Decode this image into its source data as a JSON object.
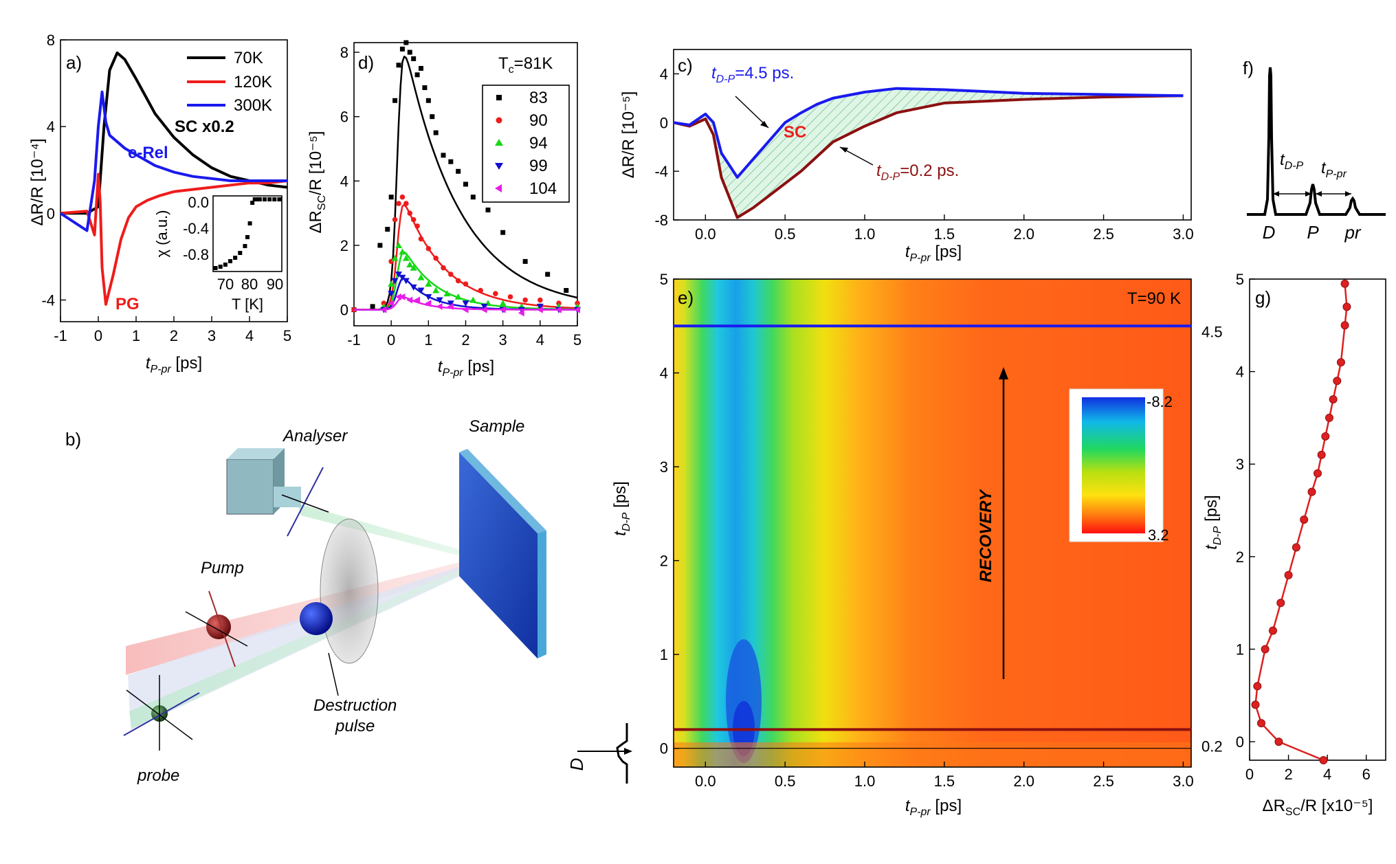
{
  "panels": {
    "a": {
      "label": "a)",
      "ylabel": "ΔR/R [10⁻⁴]",
      "xlabel": "t",
      "xlabel_sub": "P-pr",
      "xlabel_unit": " [ps]",
      "xticks": [
        "-1",
        "0",
        "1",
        "2",
        "3",
        "4",
        "5"
      ],
      "yticks": [
        "-4",
        "0",
        "4",
        "8"
      ],
      "legend": [
        "70K",
        "120K",
        "300K"
      ],
      "annot_sc": "SC x0.2",
      "annot_erel": "e-Rel",
      "annot_pg": "PG",
      "inset": {
        "ylabel": "χ (a.u.)",
        "xlabel": "T [K]",
        "yticks": [
          "0.0",
          "-0.4",
          "-0.8"
        ],
        "xticks": [
          "70",
          "80",
          "90"
        ]
      }
    },
    "d": {
      "label": "d)",
      "tc": "T",
      "tc_sub": "c",
      "tc_val": "=81K",
      "ylabel": "ΔR",
      "ylabel_sub": "SC",
      "ylabel_rest": "/R [10⁻⁵]",
      "xlabel": "t",
      "xlabel_sub": "P-pr",
      "xlabel_unit": " [ps]",
      "xticks": [
        "-1",
        "0",
        "1",
        "2",
        "3",
        "4",
        "5"
      ],
      "yticks": [
        "0",
        "2",
        "4",
        "6",
        "8"
      ],
      "legend": [
        "83",
        "90",
        "94",
        "99",
        "104"
      ]
    },
    "c": {
      "label": "c)",
      "ylabel": "ΔR/R [10⁻⁵]",
      "xlabel": "t",
      "xlabel_sub": "P-pr",
      "xlabel_unit": " [ps]",
      "xticks": [
        "0.0",
        "0.5",
        "1.0",
        "1.5",
        "2.0",
        "2.5",
        "3.0"
      ],
      "yticks": [
        "-8",
        "-4",
        "0",
        "4"
      ],
      "annot_blue": "=4.5 ps.",
      "annot_red": "=0.2 ps.",
      "annot_t": "t",
      "annot_sub": "D-P",
      "annot_sc": "SC"
    },
    "f": {
      "label": "f)",
      "t_dp": "t",
      "t_dp_sub": "D-P",
      "t_ppr": "t",
      "t_ppr_sub": "P-pr",
      "peaks": [
        "D",
        "P",
        "pr"
      ]
    },
    "b": {
      "label": "b)",
      "analyser": "Analyser",
      "sample": "Sample",
      "pump": "Pump",
      "destruction1": "Destruction",
      "destruction2": "pulse",
      "probe": "probe"
    },
    "e": {
      "label": "e)",
      "temp": "T=90 K",
      "ylabel": "t",
      "ylabel_sub": "D-P",
      "ylabel_unit": " [ps]",
      "xlabel": "t",
      "xlabel_sub": "P-pr",
      "xlabel_unit": " [ps]",
      "xticks": [
        "0.0",
        "0.5",
        "1.0",
        "1.5",
        "2.0",
        "2.5",
        "3.0"
      ],
      "yticks": [
        "0",
        "1",
        "2",
        "3",
        "4",
        "5"
      ],
      "line_blue": "4.5",
      "line_red": "0.2",
      "recovery": "RECOVERY",
      "cbar_max": "-8.2",
      "cbar_min": "3.2",
      "d_marker": "D"
    },
    "g": {
      "label": "g)",
      "ylabel": "t",
      "ylabel_sub": "D-P",
      "ylabel_unit": " [ps]",
      "xlabel": "ΔR",
      "xlabel_sub": "SC",
      "xlabel_rest": "/R [x10⁻⁵]",
      "xticks": [
        "0",
        "2",
        "4",
        "6"
      ],
      "yticks": [
        "0",
        "1",
        "2",
        "3",
        "4",
        "5"
      ]
    }
  },
  "colors": {
    "black": "#000000",
    "red": "#ee1c1c",
    "blue": "#1a1aee",
    "green": "#16d816",
    "navy": "#1010d0",
    "magenta": "#e81ce8",
    "maroon": "#8b1010",
    "dotred": "#dd2020"
  },
  "chart_data": [
    {
      "type": "line",
      "panel": "a",
      "xlim": [
        -1,
        5
      ],
      "ylim": [
        -5,
        8
      ],
      "series": [
        {
          "name": "70K",
          "x": [
            -1,
            -0.3,
            0,
            0.15,
            0.3,
            0.5,
            0.7,
            1,
            1.5,
            2,
            2.5,
            3,
            3.5,
            4,
            4.5,
            5
          ],
          "y": [
            0,
            0,
            0.3,
            4,
            6.6,
            7.4,
            7.1,
            6.2,
            4.6,
            3.5,
            2.7,
            2.1,
            1.7,
            1.5,
            1.3,
            1.2
          ]
        },
        {
          "name": "120K",
          "x": [
            -1,
            -0.3,
            -0.1,
            0,
            0.05,
            0.1,
            0.2,
            0.4,
            0.6,
            0.8,
            1,
            1.3,
            1.6,
            2,
            2.5,
            3,
            3.5,
            4,
            4.5,
            5
          ],
          "y": [
            0,
            0.1,
            -1,
            1.8,
            0.5,
            -2.5,
            -4.2,
            -2.8,
            -1.2,
            -0.2,
            0.3,
            0.6,
            0.8,
            1,
            1.1,
            1.2,
            1.3,
            1.4,
            1.4,
            1.5
          ]
        },
        {
          "name": "300K",
          "x": [
            -1,
            -0.3,
            -0.1,
            0,
            0.1,
            0.2,
            0.3,
            0.5,
            0.7,
            1,
            1.5,
            2,
            2.5,
            3,
            3.5,
            4,
            4.5,
            5
          ],
          "y": [
            0,
            -0.8,
            1.5,
            4,
            5.6,
            4.2,
            3.6,
            3.3,
            3,
            2.7,
            2.2,
            1.9,
            1.7,
            1.6,
            1.5,
            1.5,
            1.5,
            1.5
          ]
        }
      ],
      "inset": {
        "type": "scatter",
        "xlim": [
          65,
          93
        ],
        "ylim": [
          -1.05,
          0.05
        ],
        "x": [
          66,
          68,
          70,
          72,
          74,
          76,
          78,
          79,
          80,
          81,
          82,
          83,
          84,
          86,
          88,
          90,
          92
        ],
        "y": [
          -1,
          -0.98,
          -0.95,
          -0.9,
          -0.85,
          -0.78,
          -0.68,
          -0.55,
          -0.35,
          -0.05,
          0,
          0,
          0,
          0,
          0,
          0,
          0
        ]
      }
    },
    {
      "type": "scatter",
      "panel": "d",
      "xlim": [
        -1,
        5
      ],
      "ylim": [
        -0.5,
        8.3
      ],
      "series": [
        {
          "name": "83",
          "amplitude": 8.6,
          "decay": 1.5,
          "x": [
            -1,
            -0.5,
            -0.3,
            -0.1,
            0,
            0.1,
            0.2,
            0.3,
            0.4,
            0.5,
            0.6,
            0.7,
            0.8,
            0.9,
            1,
            1.1,
            1.2,
            1.4,
            1.6,
            1.8,
            2,
            2.2,
            2.6,
            3,
            3.6,
            4.2,
            4.7
          ],
          "y": [
            0,
            0.1,
            2,
            2.5,
            3.5,
            6.5,
            7.6,
            8.1,
            8.3,
            8,
            7.8,
            7.3,
            7.5,
            6.9,
            6.5,
            6,
            5.5,
            4.8,
            4.6,
            4.3,
            3.9,
            3.5,
            3.1,
            2.4,
            1.5,
            1.1,
            0.6
          ]
        },
        {
          "name": "90",
          "amplitude": 3.6,
          "decay": 1.1,
          "x": [
            -1,
            -0.2,
            0,
            0.1,
            0.2,
            0.3,
            0.4,
            0.5,
            0.6,
            0.7,
            0.8,
            1,
            1.2,
            1.4,
            1.6,
            1.8,
            2,
            2.4,
            2.8,
            3.2,
            3.6,
            4,
            4.5,
            5
          ],
          "y": [
            0,
            0.2,
            1.5,
            2.8,
            3.3,
            3.5,
            3.3,
            3,
            2.8,
            2.6,
            2.2,
            1.9,
            1.6,
            1.3,
            1.1,
            0.9,
            0.8,
            0.6,
            0.5,
            0.4,
            0.3,
            0.3,
            0.2,
            0.2
          ]
        },
        {
          "name": "94",
          "amplitude": 2.0,
          "decay": 0.9,
          "x": [
            -0.2,
            0,
            0.1,
            0.2,
            0.3,
            0.4,
            0.5,
            0.6,
            0.8,
            1,
            1.2,
            1.5,
            1.8,
            2.2,
            2.6,
            3,
            3.5,
            4,
            4.5,
            5
          ],
          "y": [
            0.1,
            0.8,
            1.6,
            2,
            1.8,
            1.6,
            1.4,
            1.3,
            1,
            0.8,
            0.6,
            0.5,
            0.4,
            0.3,
            0.2,
            0.2,
            0.1,
            0.1,
            0.1,
            0.1
          ]
        },
        {
          "name": "99",
          "amplitude": 1.1,
          "decay": 0.7,
          "x": [
            -0.2,
            0,
            0.1,
            0.2,
            0.3,
            0.4,
            0.6,
            0.8,
            1,
            1.3,
            1.6,
            2,
            2.5,
            3,
            3.5,
            4,
            4.5,
            5
          ],
          "y": [
            0,
            0.5,
            0.9,
            1.1,
            1,
            0.9,
            0.7,
            0.6,
            0.4,
            0.3,
            0.2,
            0.2,
            0.1,
            0,
            0,
            0.1,
            0,
            0
          ]
        },
        {
          "name": "104",
          "amplitude": 0.45,
          "decay": 0.6,
          "x": [
            -0.2,
            0,
            0.2,
            0.3,
            0.5,
            0.7,
            1,
            1.3,
            1.6,
            2,
            2.5,
            3,
            3.5,
            4,
            4.5,
            5
          ],
          "y": [
            0,
            0.2,
            0.4,
            0.4,
            0.3,
            0.3,
            0.2,
            0.1,
            0.1,
            0,
            0,
            0,
            -0.1,
            0,
            0,
            0
          ]
        }
      ]
    },
    {
      "type": "line",
      "panel": "c",
      "xlim": [
        -0.2,
        3.05
      ],
      "ylim": [
        -8,
        6
      ],
      "series": [
        {
          "name": "t_D-P=4.5 ps",
          "x": [
            -0.2,
            -0.1,
            0,
            0.05,
            0.1,
            0.2,
            0.3,
            0.4,
            0.5,
            0.6,
            0.7,
            0.8,
            1,
            1.2,
            1.5,
            2,
            2.5,
            3
          ],
          "y": [
            0,
            -0.2,
            0.7,
            0,
            -2.5,
            -4.5,
            -3,
            -1.5,
            0,
            0.8,
            1.5,
            2,
            2.5,
            2.8,
            2.7,
            2.4,
            2.3,
            2.2
          ]
        },
        {
          "name": "t_D-P=0.2 ps",
          "x": [
            -0.2,
            -0.1,
            0,
            0.05,
            0.1,
            0.2,
            0.3,
            0.4,
            0.5,
            0.6,
            0.7,
            0.8,
            1,
            1.2,
            1.5,
            2,
            2.5,
            3
          ],
          "y": [
            0,
            -0.3,
            0.3,
            -1,
            -4.5,
            -7.8,
            -7,
            -6,
            -5,
            -4,
            -2.8,
            -1.6,
            -0.3,
            0.8,
            1.6,
            1.9,
            2.1,
            2.2
          ]
        }
      ]
    },
    {
      "type": "heatmap",
      "panel": "e",
      "xlim": [
        -0.2,
        3.05
      ],
      "ylim": [
        -0.2,
        5
      ],
      "colorbar_range": [
        -8.2,
        3.2
      ],
      "horizontal_lines": [
        4.5,
        0.2
      ]
    },
    {
      "type": "scatter",
      "panel": "g",
      "xlim": [
        0,
        7
      ],
      "ylim": [
        -0.2,
        5
      ],
      "x": [
        3.8,
        1.5,
        0.6,
        0.3,
        0.4,
        0.8,
        1.2,
        1.6,
        2,
        2.4,
        2.8,
        3.2,
        3.5,
        3.7,
        3.9,
        4.1,
        4.3,
        4.5,
        4.7,
        4.9,
        5,
        4.9
      ],
      "y": [
        -0.2,
        0,
        0.2,
        0.4,
        0.6,
        1,
        1.2,
        1.5,
        1.8,
        2.1,
        2.4,
        2.7,
        2.9,
        3.1,
        3.3,
        3.5,
        3.7,
        3.9,
        4.1,
        4.5,
        4.7,
        4.95
      ]
    }
  ]
}
